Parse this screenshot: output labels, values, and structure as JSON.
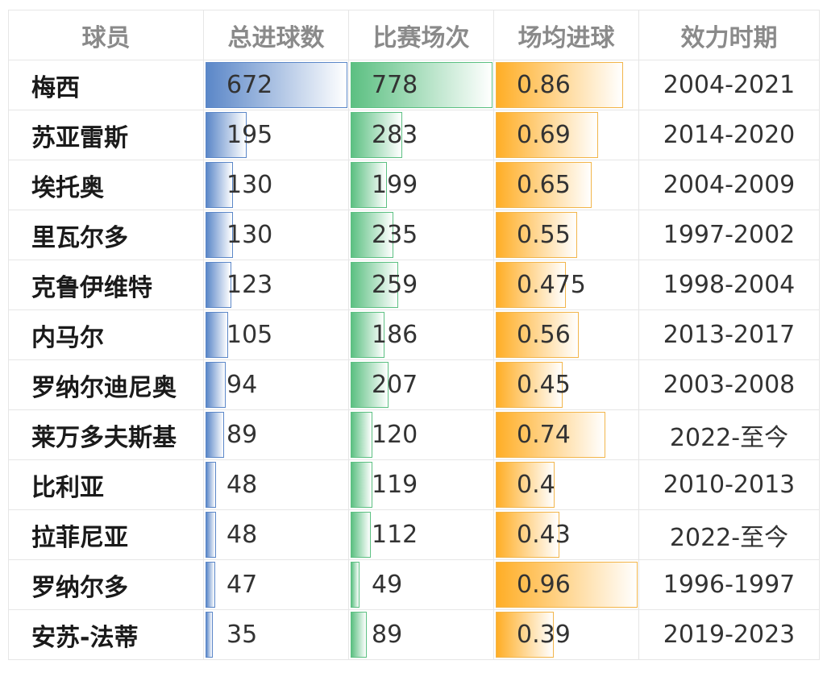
{
  "colors": {
    "goals": "#5b87c8",
    "matches": "#5cc082",
    "avg": "#ffae26"
  },
  "chart_data": {
    "type": "table",
    "columns": [
      "球员",
      "总进球数",
      "比赛场次",
      "场均进球",
      "效力时期"
    ],
    "rows": [
      {
        "name": "梅西",
        "goals": 672,
        "matches": 778,
        "avg": 0.86,
        "period": "2004-2021"
      },
      {
        "name": "苏亚雷斯",
        "goals": 195,
        "matches": 283,
        "avg": 0.69,
        "period": "2014-2020"
      },
      {
        "name": "埃托奥",
        "goals": 130,
        "matches": 199,
        "avg": 0.65,
        "period": "2004-2009"
      },
      {
        "name": "里瓦尔多",
        "goals": 130,
        "matches": 235,
        "avg": 0.55,
        "period": "1997-2002"
      },
      {
        "name": "克鲁伊维特",
        "goals": 123,
        "matches": 259,
        "avg": 0.475,
        "period": "1998-2004"
      },
      {
        "name": "内马尔",
        "goals": 105,
        "matches": 186,
        "avg": 0.56,
        "period": "2013-2017"
      },
      {
        "name": "罗纳尔迪尼奥",
        "goals": 94,
        "matches": 207,
        "avg": 0.45,
        "period": "2003-2008"
      },
      {
        "name": "莱万多夫斯基",
        "goals": 89,
        "matches": 120,
        "avg": 0.74,
        "period": "2022-至今"
      },
      {
        "name": "比利亚",
        "goals": 48,
        "matches": 119,
        "avg": 0.4,
        "period": "2010-2013"
      },
      {
        "name": "拉菲尼亚",
        "goals": 48,
        "matches": 112,
        "avg": 0.43,
        "period": "2022-至今"
      },
      {
        "name": "罗纳尔多",
        "goals": 47,
        "matches": 49,
        "avg": 0.96,
        "period": "1996-1997"
      },
      {
        "name": "安苏-法蒂",
        "goals": 35,
        "matches": 89,
        "avg": 0.39,
        "period": "2019-2023"
      }
    ]
  }
}
